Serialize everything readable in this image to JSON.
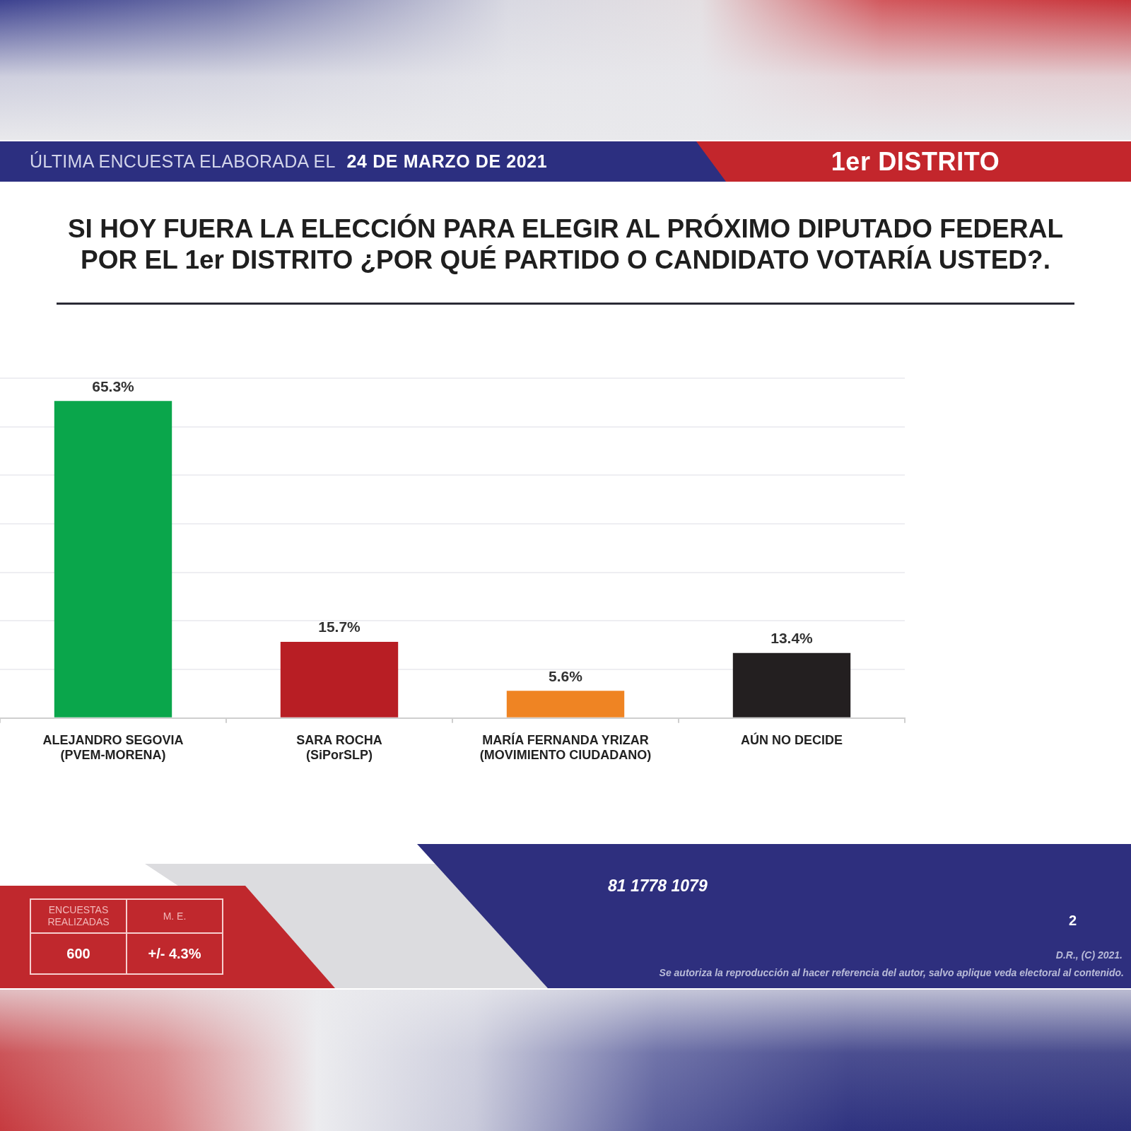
{
  "chart_data": {
    "type": "bar",
    "title": "SI HOY FUERA LA ELECCIÓN PARA ELEGIR AL PRÓXIMO DIPUTADO FEDERAL\nPOR EL 1er DISTRITO ¿POR QUÉ PARTIDO O CANDIDATO VOTARÍA USTED?.",
    "categories": [
      "ALEJANDRO SEGOVIA\n(PVEM-MORENA)",
      "SARA ROCHA\n(SiPorSLP)",
      "MARÍA FERNANDA YRIZAR\n(MOVIMIENTO CIUDADANO)",
      "AÚN NO DECIDE"
    ],
    "values": [
      65.3,
      15.7,
      5.6,
      13.4
    ],
    "value_labels": [
      "65.3%",
      "15.7%",
      "5.6%",
      "13.4%"
    ],
    "colors": [
      "#0aa64b",
      "#b81e24",
      "#ef8423",
      "#231f20"
    ],
    "ylim": [
      0,
      70
    ],
    "yticks": [
      {
        "value": 0,
        "label": null
      },
      {
        "value": 10,
        "label": null
      },
      {
        "value": 20,
        "label": null
      },
      {
        "value": 30,
        "label": null
      },
      {
        "value": 40,
        "label": null
      },
      {
        "value": 50,
        "label": null
      },
      {
        "value": 60,
        "label": null
      },
      {
        "value": 70,
        "label": null
      }
    ],
    "tick_labels": "x",
    "grid": "y",
    "annotations": [
      "ÚLTIMA ENCUESTA ELABORADA EL",
      "24 DE MARZO DE 2021",
      "1er DISTRITO",
      "ENCUESTAS REALIZADAS",
      "M. E.",
      "600",
      "+/- 4.3%",
      "81 1778 1079",
      "2",
      "D.R., (C) 2021.",
      "Se autoriza la reproducción al hacer referencia del autor, salvo aplique veda electoral al contenido."
    ]
  }
}
